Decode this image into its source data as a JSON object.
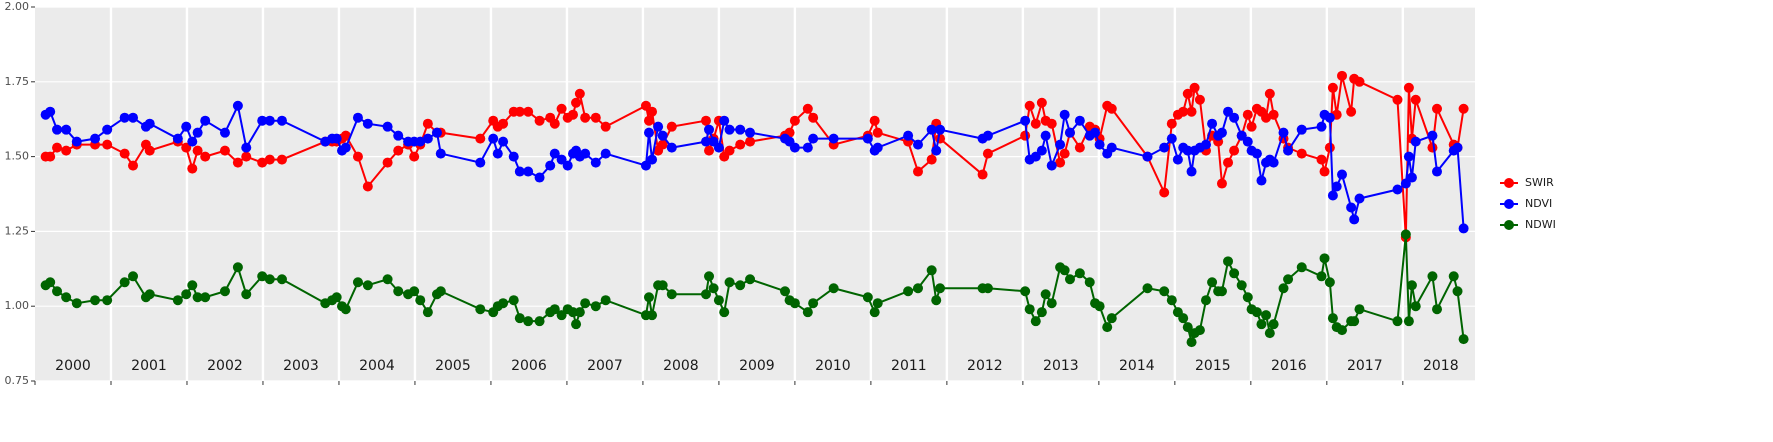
{
  "chart_data": {
    "type": "line",
    "x": [
      2000.14,
      2000.2,
      2000.29,
      2000.41,
      2000.55,
      2000.79,
      2000.95,
      2001.18,
      2001.29,
      2001.46,
      2001.51,
      2001.88,
      2001.99,
      2002.07,
      2002.14,
      2002.24,
      2002.5,
      2002.67,
      2002.78,
      2002.99,
      2003.09,
      2003.25,
      2003.82,
      2003.91,
      2003.97,
      2004.04,
      2004.09,
      2004.25,
      2004.38,
      2004.64,
      2004.78,
      2004.91,
      2004.99,
      2005.07,
      2005.17,
      2005.29,
      2005.34,
      2005.86,
      2006.03,
      2006.09,
      2006.16,
      2006.3,
      2006.38,
      2006.49,
      2006.64,
      2006.78,
      2006.84,
      2006.93,
      2007.01,
      2007.08,
      2007.12,
      2007.17,
      2007.24,
      2007.38,
      2007.51,
      2008.04,
      2008.08,
      2008.12,
      2008.2,
      2008.26,
      2008.38,
      2008.83,
      2008.87,
      2008.93,
      2009.0,
      2009.07,
      2009.14,
      2009.28,
      2009.41,
      2009.87,
      2009.93,
      2010.0,
      2010.17,
      2010.24,
      2010.51,
      2010.96,
      2011.05,
      2011.09,
      2011.49,
      2011.62,
      2011.8,
      2011.86,
      2011.91,
      2012.47,
      2012.54,
      2013.03,
      2013.09,
      2013.17,
      2013.25,
      2013.3,
      2013.38,
      2013.49,
      2013.55,
      2013.62,
      2013.75,
      2013.88,
      2013.95,
      2014.01,
      2014.11,
      2014.17,
      2014.64,
      2014.86,
      2014.96,
      2015.04,
      2015.11,
      2015.17,
      2015.22,
      2015.26,
      2015.33,
      2015.41,
      2015.49,
      2015.57,
      2015.62,
      2015.7,
      2015.78,
      2015.88,
      2015.96,
      2016.01,
      2016.08,
      2016.14,
      2016.2,
      2016.25,
      2016.3,
      2016.43,
      2016.49,
      2016.67,
      2016.93,
      2016.97,
      2017.04,
      2017.08,
      2017.13,
      2017.2,
      2017.32,
      2017.36,
      2017.43,
      2017.93,
      2018.04,
      2018.08,
      2018.12,
      2018.17,
      2018.39,
      2018.45,
      2018.67,
      2018.72,
      2018.8
    ],
    "series": [
      {
        "name": "SWIR",
        "color": "#ff0000",
        "values": [
          1.5,
          1.5,
          1.53,
          1.52,
          1.54,
          1.54,
          1.54,
          1.51,
          1.47,
          1.54,
          1.52,
          1.55,
          1.53,
          1.46,
          1.52,
          1.5,
          1.52,
          1.48,
          1.5,
          1.48,
          1.49,
          1.49,
          1.55,
          1.55,
          1.55,
          1.56,
          1.57,
          1.5,
          1.4,
          1.48,
          1.52,
          1.54,
          1.5,
          1.54,
          1.61,
          1.58,
          1.58,
          1.56,
          1.62,
          1.6,
          1.61,
          1.65,
          1.65,
          1.65,
          1.62,
          1.63,
          1.61,
          1.66,
          1.63,
          1.64,
          1.68,
          1.71,
          1.63,
          1.63,
          1.6,
          1.67,
          1.62,
          1.65,
          1.52,
          1.54,
          1.6,
          1.62,
          1.52,
          1.56,
          1.62,
          1.5,
          1.52,
          1.54,
          1.55,
          1.57,
          1.58,
          1.62,
          1.66,
          1.63,
          1.54,
          1.57,
          1.62,
          1.58,
          1.55,
          1.45,
          1.49,
          1.61,
          1.56,
          1.44,
          1.51,
          1.57,
          1.67,
          1.61,
          1.68,
          1.62,
          1.61,
          1.48,
          1.51,
          1.58,
          1.53,
          1.6,
          1.59,
          1.56,
          1.67,
          1.66,
          1.5,
          1.38,
          1.61,
          1.64,
          1.65,
          1.71,
          1.65,
          1.73,
          1.69,
          1.52,
          1.57,
          1.55,
          1.41,
          1.48,
          1.52,
          1.57,
          1.64,
          1.6,
          1.66,
          1.65,
          1.63,
          1.71,
          1.64,
          1.56,
          1.53,
          1.51,
          1.49,
          1.45,
          1.53,
          1.73,
          1.64,
          1.77,
          1.65,
          1.76,
          1.75,
          1.69,
          1.23,
          1.73,
          1.56,
          1.69,
          1.53,
          1.66,
          1.54,
          1.53,
          1.66
        ]
      },
      {
        "name": "NDVI",
        "color": "#0000ff",
        "values": [
          1.64,
          1.65,
          1.59,
          1.59,
          1.55,
          1.56,
          1.59,
          1.63,
          1.63,
          1.6,
          1.61,
          1.56,
          1.6,
          1.55,
          1.58,
          1.62,
          1.58,
          1.67,
          1.53,
          1.62,
          1.62,
          1.62,
          1.55,
          1.56,
          1.56,
          1.52,
          1.53,
          1.63,
          1.61,
          1.6,
          1.57,
          1.55,
          1.55,
          1.55,
          1.56,
          1.58,
          1.51,
          1.48,
          1.56,
          1.51,
          1.55,
          1.5,
          1.45,
          1.45,
          1.43,
          1.47,
          1.51,
          1.49,
          1.47,
          1.51,
          1.52,
          1.5,
          1.51,
          1.48,
          1.51,
          1.47,
          1.58,
          1.49,
          1.6,
          1.57,
          1.53,
          1.55,
          1.59,
          1.55,
          1.53,
          1.62,
          1.59,
          1.59,
          1.58,
          1.56,
          1.55,
          1.53,
          1.53,
          1.56,
          1.56,
          1.56,
          1.52,
          1.53,
          1.57,
          1.54,
          1.59,
          1.52,
          1.59,
          1.56,
          1.57,
          1.62,
          1.49,
          1.5,
          1.52,
          1.57,
          1.47,
          1.54,
          1.64,
          1.58,
          1.62,
          1.57,
          1.58,
          1.54,
          1.51,
          1.53,
          1.5,
          1.53,
          1.56,
          1.49,
          1.53,
          1.52,
          1.45,
          1.52,
          1.53,
          1.54,
          1.61,
          1.57,
          1.58,
          1.65,
          1.63,
          1.57,
          1.55,
          1.52,
          1.51,
          1.42,
          1.48,
          1.49,
          1.48,
          1.58,
          1.52,
          1.59,
          1.6,
          1.64,
          1.63,
          1.37,
          1.4,
          1.44,
          1.33,
          1.29,
          1.36,
          1.39,
          1.41,
          1.5,
          1.43,
          1.55,
          1.57,
          1.45,
          1.52,
          1.53,
          1.26
        ]
      },
      {
        "name": "NDWI",
        "color": "#006400",
        "values": [
          1.07,
          1.08,
          1.05,
          1.03,
          1.01,
          1.02,
          1.02,
          1.08,
          1.1,
          1.03,
          1.04,
          1.02,
          1.04,
          1.07,
          1.03,
          1.03,
          1.05,
          1.13,
          1.04,
          1.1,
          1.09,
          1.09,
          1.01,
          1.02,
          1.03,
          1.0,
          0.99,
          1.08,
          1.07,
          1.09,
          1.05,
          1.04,
          1.05,
          1.02,
          0.98,
          1.04,
          1.05,
          0.99,
          0.98,
          1.0,
          1.01,
          1.02,
          0.96,
          0.95,
          0.95,
          0.98,
          0.99,
          0.97,
          0.99,
          0.98,
          0.94,
          0.98,
          1.01,
          1.0,
          1.02,
          0.97,
          1.03,
          0.97,
          1.07,
          1.07,
          1.04,
          1.04,
          1.1,
          1.06,
          1.02,
          0.98,
          1.08,
          1.07,
          1.09,
          1.05,
          1.02,
          1.01,
          0.98,
          1.01,
          1.06,
          1.03,
          0.98,
          1.01,
          1.05,
          1.06,
          1.12,
          1.02,
          1.06,
          1.06,
          1.06,
          1.05,
          0.99,
          0.95,
          0.98,
          1.04,
          1.01,
          1.13,
          1.12,
          1.09,
          1.11,
          1.08,
          1.01,
          1.0,
          0.93,
          0.96,
          1.06,
          1.05,
          1.02,
          0.98,
          0.96,
          0.93,
          0.88,
          0.91,
          0.92,
          1.02,
          1.08,
          1.05,
          1.05,
          1.15,
          1.11,
          1.07,
          1.03,
          0.99,
          0.98,
          0.94,
          0.97,
          0.91,
          0.94,
          1.06,
          1.09,
          1.13,
          1.1,
          1.16,
          1.08,
          0.96,
          0.93,
          0.92,
          0.95,
          0.95,
          0.99,
          0.95,
          1.24,
          0.95,
          1.07,
          1.0,
          1.1,
          0.99,
          1.1,
          1.05,
          0.89
        ]
      }
    ],
    "xlim": [
      2000,
      2018.95
    ],
    "xticks": [
      2000,
      2001,
      2002,
      2003,
      2004,
      2005,
      2006,
      2007,
      2008,
      2009,
      2010,
      2011,
      2012,
      2013,
      2014,
      2015,
      2016,
      2017,
      2018
    ],
    "ylim": [
      0.75,
      2.0
    ],
    "yticks": [
      {
        "value": 0.75,
        "label": "0.75"
      },
      {
        "value": 1.0,
        "label": "1.00"
      },
      {
        "value": 1.25,
        "label": "1.25"
      },
      {
        "value": 1.5,
        "label": "1.50"
      },
      {
        "value": 1.75,
        "label": "1.75"
      },
      {
        "value": 2.0,
        "label": "2.00"
      }
    ],
    "grid": true,
    "legend": "right"
  }
}
